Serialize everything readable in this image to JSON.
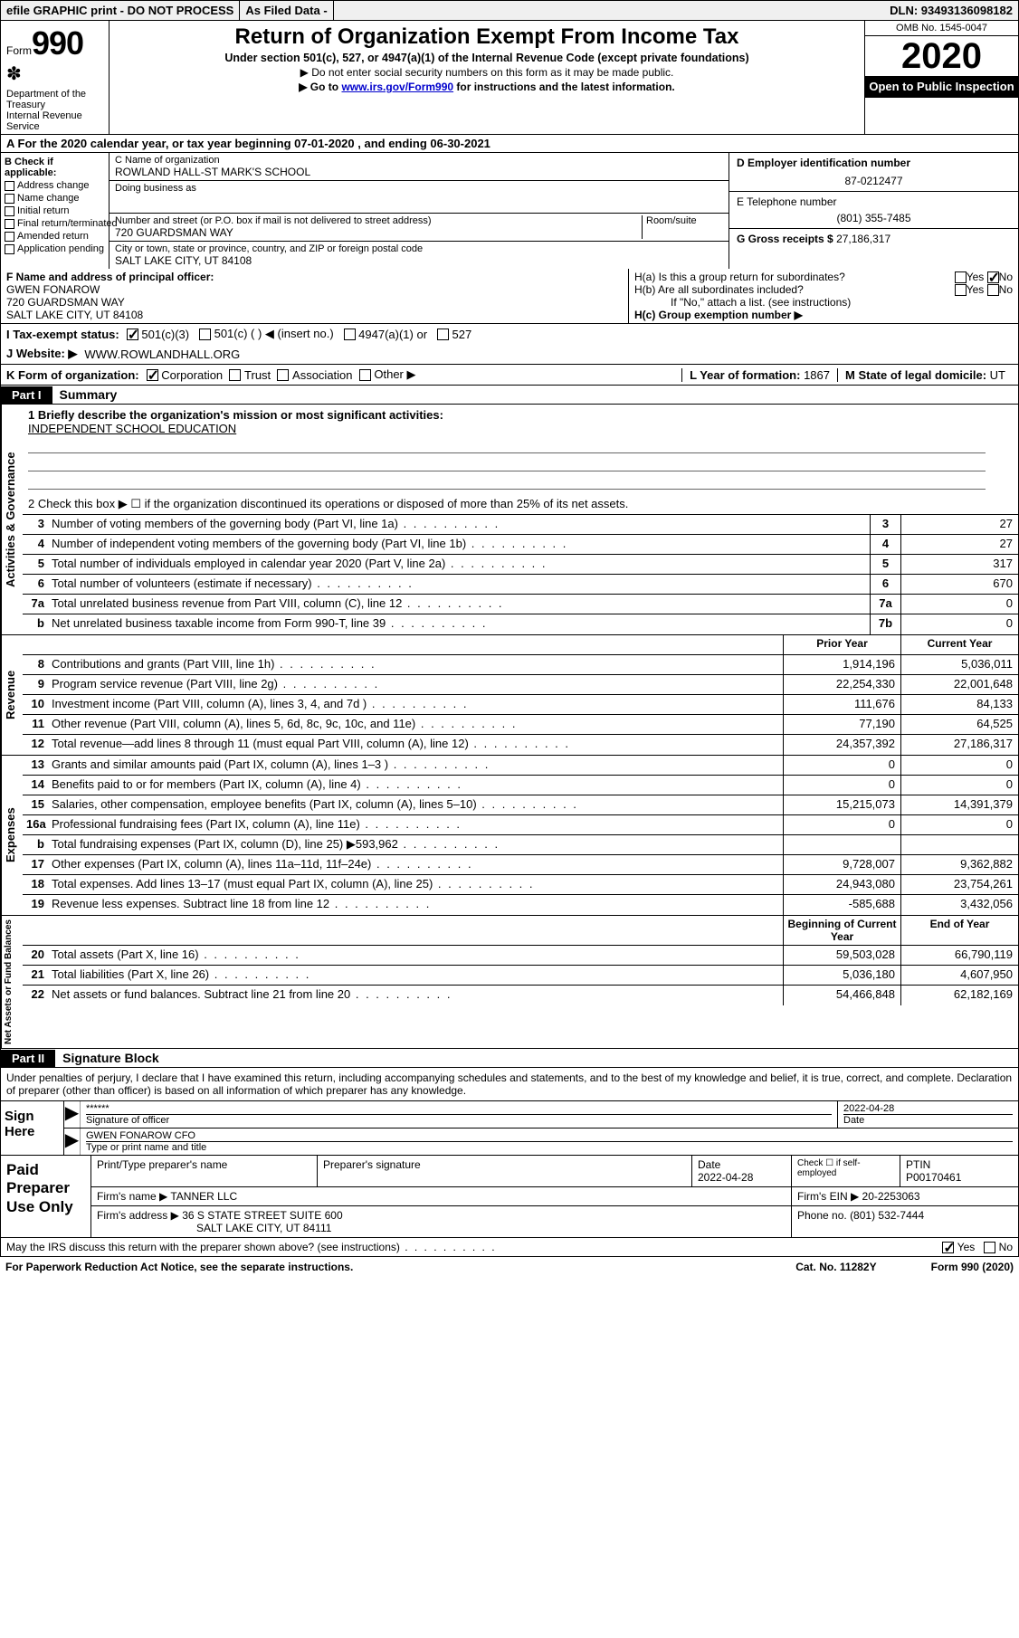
{
  "topbar": {
    "efile": "efile GRAPHIC print - DO NOT PROCESS",
    "asfiled": "As Filed Data -",
    "dln": "DLN: 93493136098182"
  },
  "header": {
    "form_label": "Form",
    "form_num": "990",
    "dept1": "Department of the Treasury",
    "dept2": "Internal Revenue Service",
    "title": "Return of Organization Exempt From Income Tax",
    "subtitle": "Under section 501(c), 527, or 4947(a)(1) of the Internal Revenue Code (except private foundations)",
    "line2": "▶ Do not enter social security numbers on this form as it may be made public.",
    "line3_pre": "▶ Go to ",
    "line3_link": "www.irs.gov/Form990",
    "line3_post": " for instructions and the latest information.",
    "omb": "OMB No. 1545-0047",
    "year": "2020",
    "open": "Open to Public Inspection"
  },
  "rowA": "A   For the 2020 calendar year, or tax year beginning 07-01-2020   , and ending 06-30-2021",
  "sectionB": {
    "label": "B Check if applicable:",
    "items": [
      "Address change",
      "Name change",
      "Initial return",
      "Final return/terminated",
      "Amended return",
      "Application pending"
    ]
  },
  "sectionC": {
    "name_label": "C Name of organization",
    "org_name": "ROWLAND HALL-ST MARK'S SCHOOL",
    "dba_label": "Doing business as",
    "dba": "",
    "addr_label": "Number and street (or P.O. box if mail is not delivered to street address)",
    "room_label": "Room/suite",
    "street": "720 GUARDSMAN WAY",
    "city_label": "City or town, state or province, country, and ZIP or foreign postal code",
    "city": "SALT LAKE CITY, UT  84108"
  },
  "sectionD": {
    "label": "D Employer identification number",
    "value": "87-0212477"
  },
  "sectionE": {
    "label": "E Telephone number",
    "value": "(801) 355-7485"
  },
  "sectionG": {
    "label": "G Gross receipts $",
    "value": "27,186,317"
  },
  "sectionF": {
    "label": "F  Name and address of principal officer:",
    "name": "GWEN FONAROW",
    "addr1": "720 GUARDSMAN WAY",
    "addr2": "SALT LAKE CITY, UT  84108"
  },
  "sectionH": {
    "a": "H(a)  Is this a group return for subordinates?",
    "b": "H(b)  Are all subordinates included?",
    "note": "If \"No,\" attach a list. (see instructions)",
    "c": "H(c)  Group exemption number ▶",
    "yes": "Yes",
    "no": "No"
  },
  "sectionI": {
    "label": "I   Tax-exempt status:",
    "opts": [
      "501(c)(3)",
      "501(c) (   ) ◀ (insert no.)",
      "4947(a)(1) or",
      "527"
    ]
  },
  "sectionJ": {
    "label": "J   Website: ▶",
    "value": "WWW.ROWLANDHALL.ORG"
  },
  "sectionK": {
    "label": "K Form of organization:",
    "opts": [
      "Corporation",
      "Trust",
      "Association",
      "Other ▶"
    ]
  },
  "sectionL": {
    "label": "L Year of formation:",
    "value": "1867"
  },
  "sectionM": {
    "label": "M State of legal domicile:",
    "value": "UT"
  },
  "part1": {
    "tab": "Part I",
    "title": "Summary"
  },
  "mission": {
    "label": "1 Briefly describe the organization's mission or most significant activities:",
    "text": "INDEPENDENT SCHOOL EDUCATION"
  },
  "line2": "2   Check this box ▶ ☐  if the organization discontinued its operations or disposed of more than 25% of its net assets.",
  "gov_lines": [
    {
      "n": "3",
      "desc": "Number of voting members of the governing body (Part VI, line 1a)",
      "cell": "3",
      "val": "27"
    },
    {
      "n": "4",
      "desc": "Number of independent voting members of the governing body (Part VI, line 1b)",
      "cell": "4",
      "val": "27"
    },
    {
      "n": "5",
      "desc": "Total number of individuals employed in calendar year 2020 (Part V, line 2a)",
      "cell": "5",
      "val": "317"
    },
    {
      "n": "6",
      "desc": "Total number of volunteers (estimate if necessary)",
      "cell": "6",
      "val": "670"
    },
    {
      "n": "7a",
      "desc": "Total unrelated business revenue from Part VIII, column (C), line 12",
      "cell": "7a",
      "val": "0"
    },
    {
      "n": "b",
      "desc": "Net unrelated business taxable income from Form 990-T, line 39",
      "cell": "7b",
      "val": "0"
    }
  ],
  "col_headers": {
    "prior": "Prior Year",
    "current": "Current Year"
  },
  "rev_lines": [
    {
      "n": "8",
      "desc": "Contributions and grants (Part VIII, line 1h)",
      "prior": "1,914,196",
      "curr": "5,036,011"
    },
    {
      "n": "9",
      "desc": "Program service revenue (Part VIII, line 2g)",
      "prior": "22,254,330",
      "curr": "22,001,648"
    },
    {
      "n": "10",
      "desc": "Investment income (Part VIII, column (A), lines 3, 4, and 7d )",
      "prior": "111,676",
      "curr": "84,133"
    },
    {
      "n": "11",
      "desc": "Other revenue (Part VIII, column (A), lines 5, 6d, 8c, 9c, 10c, and 11e)",
      "prior": "77,190",
      "curr": "64,525"
    },
    {
      "n": "12",
      "desc": "Total revenue—add lines 8 through 11 (must equal Part VIII, column (A), line 12)",
      "prior": "24,357,392",
      "curr": "27,186,317"
    }
  ],
  "exp_lines": [
    {
      "n": "13",
      "desc": "Grants and similar amounts paid (Part IX, column (A), lines 1–3 )",
      "prior": "0",
      "curr": "0"
    },
    {
      "n": "14",
      "desc": "Benefits paid to or for members (Part IX, column (A), line 4)",
      "prior": "0",
      "curr": "0"
    },
    {
      "n": "15",
      "desc": "Salaries, other compensation, employee benefits (Part IX, column (A), lines 5–10)",
      "prior": "15,215,073",
      "curr": "14,391,379"
    },
    {
      "n": "16a",
      "desc": "Professional fundraising fees (Part IX, column (A), line 11e)",
      "prior": "0",
      "curr": "0"
    },
    {
      "n": "b",
      "desc": "Total fundraising expenses (Part IX, column (D), line 25) ▶593,962",
      "prior": "",
      "curr": ""
    },
    {
      "n": "17",
      "desc": "Other expenses (Part IX, column (A), lines 11a–11d, 11f–24e)",
      "prior": "9,728,007",
      "curr": "9,362,882"
    },
    {
      "n": "18",
      "desc": "Total expenses. Add lines 13–17 (must equal Part IX, column (A), line 25)",
      "prior": "24,943,080",
      "curr": "23,754,261"
    },
    {
      "n": "19",
      "desc": "Revenue less expenses. Subtract line 18 from line 12",
      "prior": "-585,688",
      "curr": "3,432,056"
    }
  ],
  "na_headers": {
    "begin": "Beginning of Current Year",
    "end": "End of Year"
  },
  "na_lines": [
    {
      "n": "20",
      "desc": "Total assets (Part X, line 16)",
      "prior": "59,503,028",
      "curr": "66,790,119"
    },
    {
      "n": "21",
      "desc": "Total liabilities (Part X, line 26)",
      "prior": "5,036,180",
      "curr": "4,607,950"
    },
    {
      "n": "22",
      "desc": "Net assets or fund balances. Subtract line 21 from line 20",
      "prior": "54,466,848",
      "curr": "62,182,169"
    }
  ],
  "vtext": {
    "gov": "Activities & Governance",
    "rev": "Revenue",
    "exp": "Expenses",
    "na": "Net Assets or Fund Balances"
  },
  "part2": {
    "tab": "Part II",
    "title": "Signature Block"
  },
  "declare": "Under penalties of perjury, I declare that I have examined this return, including accompanying schedules and statements, and to the best of my knowledge and belief, it is true, correct, and complete. Declaration of preparer (other than officer) is based on all information of which preparer has any knowledge.",
  "sign": {
    "left": "Sign Here",
    "stars": "******",
    "sig_label": "Signature of officer",
    "date": "2022-04-28",
    "date_label": "Date",
    "name": "GWEN FONAROW CFO",
    "name_label": "Type or print name and title"
  },
  "prep": {
    "left": "Paid Preparer Use Only",
    "h1": "Print/Type preparer's name",
    "h2": "Preparer's signature",
    "h3": "Date",
    "date": "2022-04-28",
    "check_label": "Check ☐ if self-employed",
    "ptin_label": "PTIN",
    "ptin": "P00170461",
    "firm_label": "Firm's name   ▶",
    "firm": "TANNER LLC",
    "ein_label": "Firm's EIN ▶",
    "ein": "20-2253063",
    "addr_label": "Firm's address ▶",
    "addr1": "36 S STATE STREET SUITE 600",
    "addr2": "SALT LAKE CITY, UT  84111",
    "phone_label": "Phone no.",
    "phone": "(801) 532-7444"
  },
  "discuss": {
    "text": "May the IRS discuss this return with the preparer shown above? (see instructions)",
    "yes": "Yes",
    "no": "No"
  },
  "footer": {
    "left": "For Paperwork Reduction Act Notice, see the separate instructions.",
    "mid": "Cat. No. 11282Y",
    "right": "Form 990 (2020)"
  }
}
